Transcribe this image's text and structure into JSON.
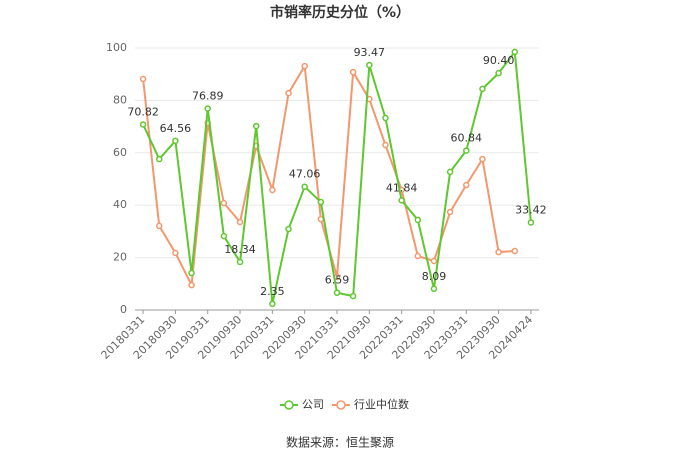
{
  "chart_data": {
    "type": "line",
    "title": "市销率历史分位（%）",
    "categories": [
      "20180331",
      null,
      "20180930",
      null,
      "20190331",
      null,
      "20190930",
      null,
      "20200331",
      null,
      "20200930",
      null,
      "20210331",
      null,
      "20210930",
      null,
      "20220331",
      null,
      "20220930",
      null,
      "20230331",
      null,
      "20230930",
      null,
      "20240424"
    ],
    "series": [
      {
        "name": "公司",
        "color": "#5fc72f",
        "values": [
          70.82,
          57.6,
          64.56,
          14.1,
          76.89,
          28.2,
          18.34,
          70.2,
          2.35,
          30.9,
          47.06,
          41.2,
          6.59,
          5.3,
          93.47,
          73.3,
          41.84,
          34.4,
          8.09,
          52.7,
          60.84,
          84.4,
          90.4,
          98.5,
          33.42
        ],
        "value_labels": [
          "70.82",
          null,
          "64.56",
          null,
          "76.89",
          null,
          "18.34",
          null,
          "2.35",
          null,
          "47.06",
          null,
          "6.59",
          null,
          "93.47",
          null,
          "41.84",
          null,
          "8.09",
          null,
          "60.84",
          null,
          "90.40",
          null,
          "33.42"
        ]
      },
      {
        "name": "行业中位数",
        "color": "#f4976c",
        "values": [
          88.2,
          32.1,
          21.8,
          9.5,
          71.4,
          40.8,
          33.6,
          62.6,
          45.8,
          82.8,
          93.1,
          34.7,
          12.6,
          90.8,
          80.5,
          63.0,
          45.8,
          20.6,
          18.7,
          37.4,
          47.7,
          57.6,
          22.1,
          22.5,
          null
        ]
      }
    ],
    "ylim": [
      0,
      100
    ],
    "yticks": [
      0,
      20,
      40,
      60,
      80,
      100
    ],
    "grid": true,
    "legend": "bottom",
    "source": "数据来源：恒生聚源"
  }
}
